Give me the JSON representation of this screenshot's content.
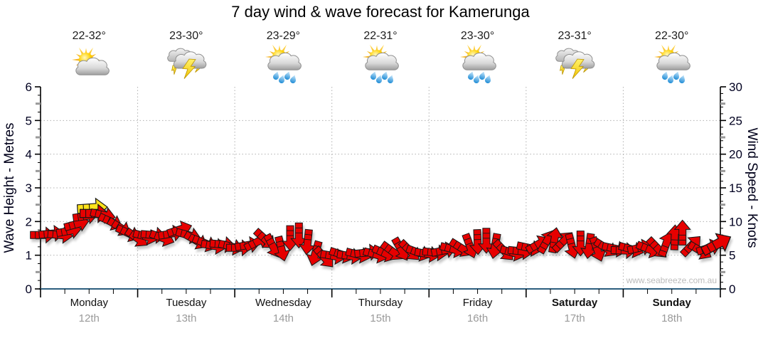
{
  "title": "7 day wind & wave forecast for Kamerunga",
  "watermark": "www.seabreeze.com.au",
  "days": [
    {
      "name": "Monday",
      "date": "12th",
      "temp": "22-32°",
      "icon": "partly-cloudy",
      "bold": false
    },
    {
      "name": "Tuesday",
      "date": "13th",
      "temp": "23-30°",
      "icon": "thunderstorm",
      "bold": false
    },
    {
      "name": "Wednesday",
      "date": "14th",
      "temp": "23-29°",
      "icon": "sun-showers",
      "bold": false
    },
    {
      "name": "Thursday",
      "date": "15th",
      "temp": "22-31°",
      "icon": "sun-showers",
      "bold": false
    },
    {
      "name": "Friday",
      "date": "16th",
      "temp": "23-30°",
      "icon": "sun-showers",
      "bold": false
    },
    {
      "name": "Saturday",
      "date": "17th",
      "temp": "23-31°",
      "icon": "thunderstorm",
      "bold": true
    },
    {
      "name": "Sunday",
      "date": "18th",
      "temp": "22-30°",
      "icon": "sun-showers",
      "bold": true
    }
  ],
  "colors": {
    "arrow_red": "#e60505",
    "arrow_yellow": "#ffe31a",
    "axis_line_blue": "#2c5e7e",
    "axis_black": "#000000",
    "grid": "#b0b0b0",
    "half_tick": "#999999",
    "tick_label": "#000020",
    "date_gray": "#9a9a9a"
  },
  "chart_data": {
    "type": "wind_arrows",
    "title": "7 day wind & wave forecast for Kamerunga",
    "categories": [
      "Monday 12th",
      "Tuesday 13th",
      "Wednesday 14th",
      "Thursday 15th",
      "Friday 16th",
      "Saturday 17th",
      "Sunday 18th"
    ],
    "left_axis": {
      "label": "Wave Height - Metres",
      "min": 0,
      "max": 6,
      "major_step": 1,
      "minor_step": 0.25
    },
    "right_axis": {
      "label": "Wind Speed - Knots",
      "min": 0,
      "max": 30,
      "major_step": 5,
      "minor_step": 1
    },
    "grid": "dotted",
    "arrow_note": "t = days since Monday 00:00 (x), k = wind speed in knots (y, right axis), a = arrow rotation deg (0 = pointing right, +cw), c = yellow for special, s = scale",
    "arrows": [
      {
        "t": 0.02,
        "k": 8.0,
        "a": 0
      },
      {
        "t": 0.11,
        "k": 8.2,
        "a": -5
      },
      {
        "t": 0.2,
        "k": 8.0,
        "a": 5
      },
      {
        "t": 0.29,
        "k": 8.6,
        "a": -10
      },
      {
        "t": 0.37,
        "k": 9.6,
        "a": -15
      },
      {
        "t": 0.46,
        "k": 10.8,
        "a": -8
      },
      {
        "t": 0.53,
        "k": 12.0,
        "a": -4,
        "c": "yellow",
        "s": 1.2
      },
      {
        "t": 0.55,
        "k": 11.2,
        "a": 0,
        "s": 1.15
      },
      {
        "t": 0.64,
        "k": 11.0,
        "a": 12
      },
      {
        "t": 0.72,
        "k": 10.0,
        "a": 25
      },
      {
        "t": 0.81,
        "k": 9.2,
        "a": 32
      },
      {
        "t": 0.9,
        "k": 8.3,
        "a": 25
      },
      {
        "t": 0.99,
        "k": 7.6,
        "a": 35
      },
      {
        "t": 1.08,
        "k": 7.8,
        "a": 15
      },
      {
        "t": 1.16,
        "k": 8.0,
        "a": 5
      },
      {
        "t": 1.25,
        "k": 7.6,
        "a": 20
      },
      {
        "t": 1.34,
        "k": 8.2,
        "a": -10
      },
      {
        "t": 1.43,
        "k": 8.8,
        "a": -18
      },
      {
        "t": 1.52,
        "k": 8.0,
        "a": 15
      },
      {
        "t": 1.6,
        "k": 7.2,
        "a": 30
      },
      {
        "t": 1.69,
        "k": 6.8,
        "a": 22
      },
      {
        "t": 1.78,
        "k": 6.4,
        "a": 10
      },
      {
        "t": 1.87,
        "k": 6.6,
        "a": 5
      },
      {
        "t": 1.96,
        "k": 6.3,
        "a": 14
      },
      {
        "t": 2.04,
        "k": 6.1,
        "a": 0
      },
      {
        "t": 2.13,
        "k": 6.5,
        "a": -10
      },
      {
        "t": 2.22,
        "k": 6.9,
        "a": -28
      },
      {
        "t": 2.31,
        "k": 7.4,
        "a": 42
      },
      {
        "t": 2.39,
        "k": 6.4,
        "a": 62
      },
      {
        "t": 2.48,
        "k": 6.0,
        "a": 76
      },
      {
        "t": 2.57,
        "k": 7.6,
        "a": 90
      },
      {
        "t": 2.66,
        "k": 8.0,
        "a": 90
      },
      {
        "t": 2.75,
        "k": 7.0,
        "a": 96
      },
      {
        "t": 2.83,
        "k": 5.3,
        "a": 106
      },
      {
        "t": 2.92,
        "k": 4.7,
        "a": 48
      },
      {
        "t": 3.01,
        "k": 4.9,
        "a": 10
      },
      {
        "t": 3.1,
        "k": 5.1,
        "a": 18
      },
      {
        "t": 3.18,
        "k": 4.9,
        "a": 8
      },
      {
        "t": 3.27,
        "k": 5.1,
        "a": 14
      },
      {
        "t": 3.36,
        "k": 5.4,
        "a": -6
      },
      {
        "t": 3.45,
        "k": 5.1,
        "a": 16
      },
      {
        "t": 3.54,
        "k": 5.3,
        "a": 24
      },
      {
        "t": 3.62,
        "k": 5.6,
        "a": 36
      },
      {
        "t": 3.71,
        "k": 5.9,
        "a": 60
      },
      {
        "t": 3.8,
        "k": 5.7,
        "a": 45
      },
      {
        "t": 3.89,
        "k": 5.4,
        "a": 20
      },
      {
        "t": 3.98,
        "k": 5.2,
        "a": 10
      },
      {
        "t": 4.06,
        "k": 5.4,
        "a": 6
      },
      {
        "t": 4.15,
        "k": 5.7,
        "a": -12
      },
      {
        "t": 4.24,
        "k": 5.9,
        "a": 15
      },
      {
        "t": 4.33,
        "k": 6.1,
        "a": 32
      },
      {
        "t": 4.42,
        "k": 6.4,
        "a": 70
      },
      {
        "t": 4.5,
        "k": 7.0,
        "a": 88
      },
      {
        "t": 4.59,
        "k": 7.2,
        "a": 90
      },
      {
        "t": 4.68,
        "k": 6.4,
        "a": 100
      },
      {
        "t": 4.77,
        "k": 5.7,
        "a": 46
      },
      {
        "t": 4.86,
        "k": 5.4,
        "a": 16
      },
      {
        "t": 4.94,
        "k": 5.6,
        "a": 6
      },
      {
        "t": 5.03,
        "k": 6.1,
        "a": 12
      },
      {
        "t": 5.12,
        "k": 6.6,
        "a": -30
      },
      {
        "t": 5.21,
        "k": 7.0,
        "a": -60
      },
      {
        "t": 5.29,
        "k": 7.2,
        "a": -80
      },
      {
        "t": 5.38,
        "k": 7.0,
        "a": -45
      },
      {
        "t": 5.47,
        "k": 6.4,
        "a": 76
      },
      {
        "t": 5.56,
        "k": 6.8,
        "a": 90
      },
      {
        "t": 5.65,
        "k": 6.4,
        "a": 98
      },
      {
        "t": 5.73,
        "k": 5.9,
        "a": 70
      },
      {
        "t": 5.82,
        "k": 6.1,
        "a": 32
      },
      {
        "t": 5.91,
        "k": 6.0,
        "a": 12
      },
      {
        "t": 6.0,
        "k": 5.7,
        "a": 2
      },
      {
        "t": 6.08,
        "k": 5.9,
        "a": 16
      },
      {
        "t": 6.17,
        "k": 6.1,
        "a": -12
      },
      {
        "t": 6.26,
        "k": 5.9,
        "a": 22
      },
      {
        "t": 6.35,
        "k": 6.1,
        "a": 46
      },
      {
        "t": 6.44,
        "k": 6.6,
        "a": -70
      },
      {
        "t": 6.53,
        "k": 7.6,
        "a": -88
      },
      {
        "t": 6.61,
        "k": 8.3,
        "a": -90
      },
      {
        "t": 6.7,
        "k": 6.4,
        "a": -46
      },
      {
        "t": 6.79,
        "k": 5.7,
        "a": 30
      },
      {
        "t": 6.88,
        "k": 6.1,
        "a": -18
      },
      {
        "t": 6.96,
        "k": 6.6,
        "a": -28,
        "s": 1.25
      }
    ]
  }
}
